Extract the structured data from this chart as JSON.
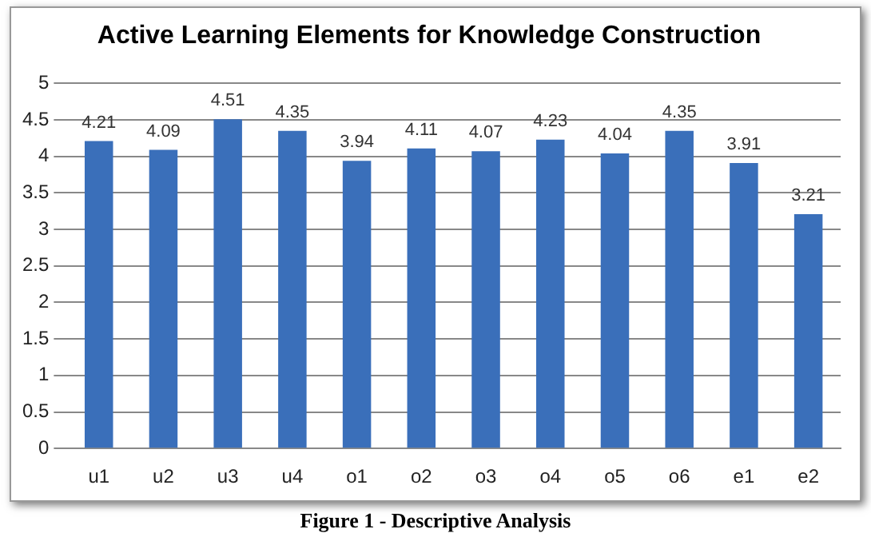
{
  "chart_data": {
    "type": "bar",
    "title": "Active Learning Elements for Knowledge Construction",
    "categories": [
      "u1",
      "u2",
      "u3",
      "u4",
      "o1",
      "o2",
      "o3",
      "o4",
      "o5",
      "o6",
      "e1",
      "e2"
    ],
    "values": [
      4.21,
      4.09,
      4.51,
      4.35,
      3.94,
      4.11,
      4.07,
      4.23,
      4.04,
      4.35,
      3.91,
      3.21
    ],
    "color": "#3a6fba",
    "ylim": [
      0,
      5
    ],
    "yticks": [
      0,
      0.5,
      1,
      1.5,
      2,
      2.5,
      3,
      3.5,
      4,
      4.5,
      5
    ],
    "grid": "y",
    "data_labels": true,
    "annotations": [
      "Figure 1 - Descriptive Analysis"
    ]
  }
}
